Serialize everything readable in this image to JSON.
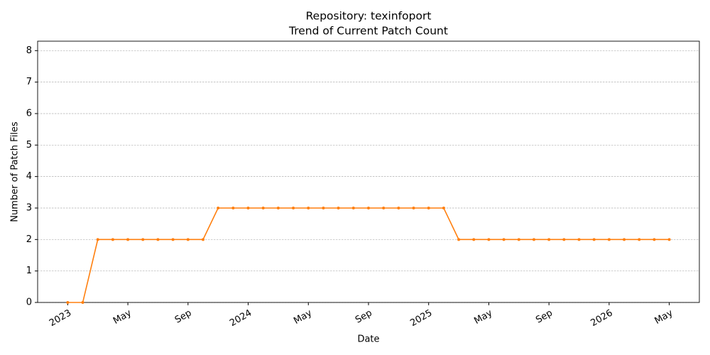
{
  "chart_data": {
    "type": "line",
    "title": "Repository: texinfoport",
    "subtitle": "Trend of Current Patch Count",
    "x_label": "Date",
    "y_label": "Number of Patch Files",
    "x": [
      "2023-01",
      "2023-02",
      "2023-03",
      "2023-04",
      "2023-05",
      "2023-06",
      "2023-07",
      "2023-08",
      "2023-09",
      "2023-10",
      "2023-11",
      "2023-12",
      "2024-01",
      "2024-02",
      "2024-03",
      "2024-04",
      "2024-05",
      "2024-06",
      "2024-07",
      "2024-08",
      "2024-09",
      "2024-10",
      "2024-11",
      "2024-12",
      "2025-01",
      "2025-02",
      "2025-03",
      "2025-04",
      "2025-05",
      "2025-06",
      "2025-07",
      "2025-08",
      "2025-09",
      "2025-10",
      "2025-11",
      "2025-12",
      "2026-01",
      "2026-02",
      "2026-03",
      "2026-04",
      "2026-05"
    ],
    "series": [
      {
        "name": "texinfoport",
        "color": "#ff7f0e",
        "values": [
          0,
          0,
          2,
          2,
          2,
          2,
          2,
          2,
          2,
          2,
          3,
          3,
          3,
          3,
          3,
          3,
          3,
          3,
          3,
          3,
          3,
          3,
          3,
          3,
          3,
          3,
          2,
          2,
          2,
          2,
          2,
          2,
          2,
          2,
          2,
          2,
          2,
          2,
          2,
          2,
          2
        ]
      }
    ],
    "xlim": [
      "2022-11",
      "2026-07"
    ],
    "xticks": [
      {
        "value": "2023-01",
        "label": "2023"
      },
      {
        "value": "2023-05",
        "label": "May"
      },
      {
        "value": "2023-09",
        "label": "Sep"
      },
      {
        "value": "2024-01",
        "label": "2024"
      },
      {
        "value": "2024-05",
        "label": "May"
      },
      {
        "value": "2024-09",
        "label": "Sep"
      },
      {
        "value": "2025-01",
        "label": "2025"
      },
      {
        "value": "2025-05",
        "label": "May"
      },
      {
        "value": "2025-09",
        "label": "Sep"
      },
      {
        "value": "2026-01",
        "label": "2026"
      },
      {
        "value": "2026-05",
        "label": "May"
      }
    ],
    "ylim": [
      0,
      8.3
    ],
    "yticks": [
      0,
      1,
      2,
      3,
      4,
      5,
      6,
      7,
      8
    ],
    "grid": true
  }
}
